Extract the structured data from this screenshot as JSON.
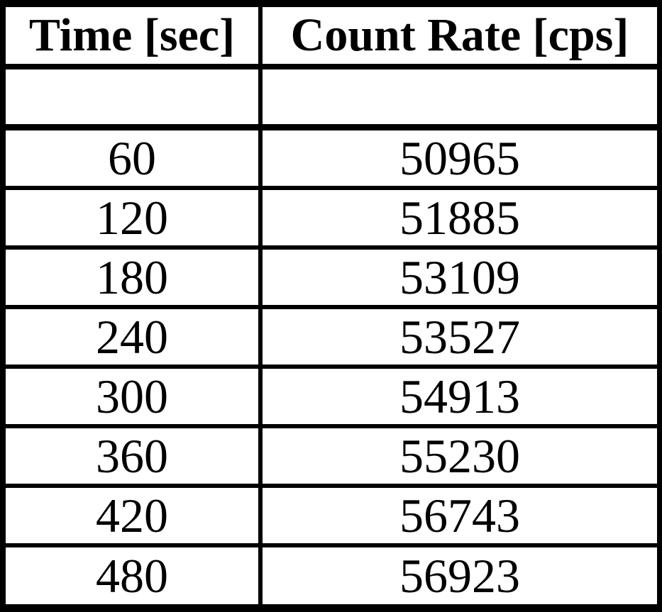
{
  "table": {
    "headers": [
      "Time [sec]",
      "Count Rate [cps]"
    ],
    "rows": [
      [
        "60",
        "50965"
      ],
      [
        "120",
        "51885"
      ],
      [
        "180",
        "53109"
      ],
      [
        "240",
        "53527"
      ],
      [
        "300",
        "54913"
      ],
      [
        "360",
        "55230"
      ],
      [
        "420",
        "56743"
      ],
      [
        "480",
        "56923"
      ]
    ]
  },
  "chart_data": {
    "type": "table",
    "columns": [
      "Time [sec]",
      "Count Rate [cps]"
    ],
    "x": [
      60,
      120,
      180,
      240,
      300,
      360,
      420,
      480
    ],
    "series": [
      {
        "name": "Count Rate [cps]",
        "values": [
          50965,
          51885,
          53109,
          53527,
          54913,
          55230,
          56743,
          56923
        ]
      }
    ],
    "title": "",
    "xlabel": "Time [sec]",
    "ylabel": "Count Rate [cps]"
  },
  "colors": {
    "border": "#000000",
    "text": "#000000",
    "background": "#ffffff"
  }
}
